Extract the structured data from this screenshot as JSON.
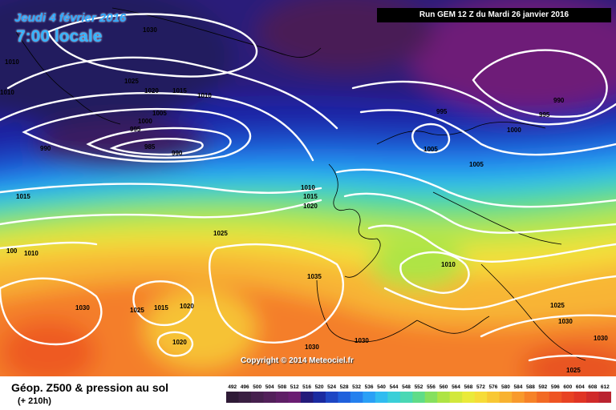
{
  "header": {
    "date": "Jeudi 4 février 2016",
    "time": "7:00 locale",
    "run": "Run GEM 12 Z du Mardi 26 janvier 2016"
  },
  "footer": {
    "title": "Géop. Z500 & pression au sol",
    "subtitle": "(+ 210h)",
    "copyright": "Copyright © 2014 Meteociel.fr"
  },
  "legend": {
    "values": [
      "492",
      "496",
      "500",
      "504",
      "508",
      "512",
      "516",
      "520",
      "524",
      "528",
      "532",
      "536",
      "540",
      "544",
      "548",
      "552",
      "556",
      "560",
      "564",
      "568",
      "572",
      "576",
      "580",
      "584",
      "588",
      "592",
      "596",
      "600",
      "604",
      "608",
      "612"
    ],
    "colors": [
      "#2e1a36",
      "#3a1f42",
      "#46204e",
      "#52205a",
      "#5e1f66",
      "#6a1d72",
      "#241a7a",
      "#1a2aa0",
      "#1d46c4",
      "#1f60dc",
      "#2480ee",
      "#2aa0f6",
      "#30bcf0",
      "#3acfd8",
      "#4ad8b4",
      "#60dc88",
      "#86e05e",
      "#aee444",
      "#d2e83c",
      "#eaea3a",
      "#f6dc38",
      "#f8c834",
      "#f8b230",
      "#f89a2c",
      "#f68228",
      "#f26a24",
      "#ee5422",
      "#e84222",
      "#e03424",
      "#d02a2a",
      "#ba2430"
    ]
  },
  "isobars": [
    {
      "text": "1030"
    },
    {
      "text": "1010"
    },
    {
      "text": "1010"
    },
    {
      "text": "1025"
    },
    {
      "text": "1020"
    },
    {
      "text": "1015"
    },
    {
      "text": "1010"
    },
    {
      "text": "1005"
    },
    {
      "text": "1000"
    },
    {
      "text": "995"
    },
    {
      "text": "990"
    },
    {
      "text": "985"
    },
    {
      "text": "990"
    },
    {
      "text": "995"
    },
    {
      "text": "990"
    },
    {
      "text": "995"
    },
    {
      "text": "1000"
    },
    {
      "text": "1005"
    },
    {
      "text": "1005"
    },
    {
      "text": "1015"
    },
    {
      "text": "1010"
    },
    {
      "text": "1015"
    },
    {
      "text": "1020"
    },
    {
      "text": "1025"
    },
    {
      "text": "1010"
    },
    {
      "text": "100"
    },
    {
      "text": "1010"
    },
    {
      "text": "1035"
    },
    {
      "text": "1030"
    },
    {
      "text": "1025"
    },
    {
      "text": "1015"
    },
    {
      "text": "1020"
    },
    {
      "text": "1020"
    },
    {
      "text": "1030"
    },
    {
      "text": "1030"
    },
    {
      "text": "1025"
    },
    {
      "text": "1030"
    },
    {
      "text": "1030"
    },
    {
      "text": "1025"
    }
  ]
}
